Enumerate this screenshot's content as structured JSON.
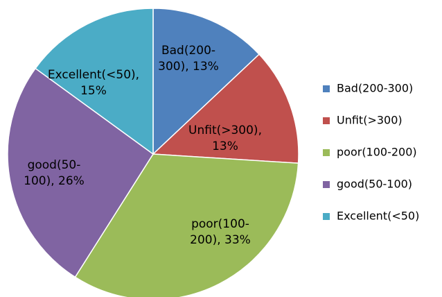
{
  "chart_data": {
    "type": "pie",
    "categories": [
      "Bad(200-300)",
      "Unfit(>300)",
      "poor(100-200)",
      "good(50-100)",
      "Excellent(<50)"
    ],
    "values": [
      13,
      13,
      33,
      26,
      15
    ],
    "value_labels": [
      "Bad(200-300), 13%",
      "Unfit(>300), 13%",
      "poor(100-200), 33%",
      "good(50-100), 26%",
      "Excellent(<50), 15%"
    ],
    "colors": [
      "#4f81bd",
      "#c0504d",
      "#9bbb59",
      "#8064a2",
      "#4bacc6"
    ],
    "legend": "right"
  }
}
